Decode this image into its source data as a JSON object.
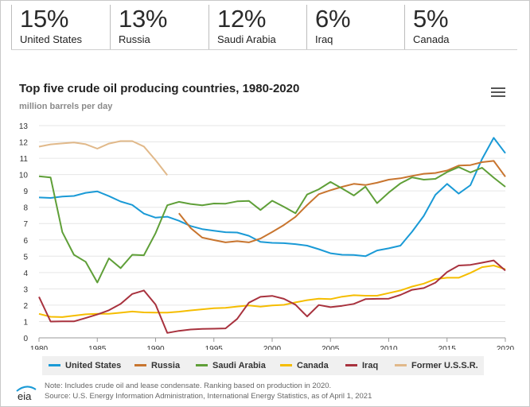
{
  "stats": [
    {
      "value": "15%",
      "country": "United States"
    },
    {
      "value": "13%",
      "country": "Russia"
    },
    {
      "value": "12%",
      "country": "Saudi Arabia"
    },
    {
      "value": "6%",
      "country": "Iraq"
    },
    {
      "value": "5%",
      "country": "Canada"
    }
  ],
  "chart": {
    "title": "Top five crude oil producing countries, 1980-2020",
    "subtitle": "million barrels per day",
    "menu_icon": "hamburger-menu-icon"
  },
  "footer": {
    "logo_text": "eia",
    "note": "Note: Includes crude oil and lease condensate. Ranking based on production in 2020.",
    "source": "Source: U.S. Energy Information Administration, International Energy Statistics, as of April 1, 2021"
  },
  "chart_data": {
    "type": "line",
    "title": "Top five crude oil producing countries, 1980-2020",
    "ylabel": "million barrels per day",
    "xlabel": "",
    "xlim": [
      1980,
      2020
    ],
    "ylim": [
      0,
      13
    ],
    "xticks": [
      1980,
      1985,
      1990,
      1995,
      2000,
      2005,
      2010,
      2015,
      2020
    ],
    "yticks": [
      0,
      1,
      2,
      3,
      4,
      5,
      6,
      7,
      8,
      9,
      10,
      11,
      12,
      13
    ],
    "grid": true,
    "legend_position": "bottom",
    "series": [
      {
        "name": "United States",
        "color": "#1a9ad6",
        "start": 1980,
        "values": [
          8.6,
          8.57,
          8.65,
          8.69,
          8.88,
          8.97,
          8.68,
          8.35,
          8.14,
          7.61,
          7.36,
          7.42,
          7.17,
          6.85,
          6.66,
          6.56,
          6.47,
          6.45,
          6.25,
          5.88,
          5.82,
          5.8,
          5.74,
          5.65,
          5.43,
          5.18,
          5.09,
          5.08,
          5.0,
          5.35,
          5.48,
          5.65,
          6.5,
          7.47,
          8.76,
          9.43,
          8.83,
          9.35,
          10.95,
          12.25,
          11.31
        ]
      },
      {
        "name": "Russia",
        "color": "#c8752f",
        "start": 1992,
        "values": [
          7.63,
          6.73,
          6.14,
          5.99,
          5.85,
          5.92,
          5.85,
          6.08,
          6.48,
          6.91,
          7.41,
          8.13,
          8.8,
          9.04,
          9.25,
          9.43,
          9.36,
          9.5,
          9.69,
          9.77,
          9.92,
          10.05,
          10.1,
          10.25,
          10.55,
          10.58,
          10.76,
          10.84,
          9.87
        ]
      },
      {
        "name": "Saudi Arabia",
        "color": "#5f9f38",
        "start": 1980,
        "values": [
          9.9,
          9.82,
          6.48,
          5.09,
          4.66,
          3.39,
          4.87,
          4.27,
          5.09,
          5.06,
          6.41,
          8.12,
          8.33,
          8.2,
          8.12,
          8.23,
          8.22,
          8.36,
          8.39,
          7.83,
          8.4,
          8.03,
          7.63,
          8.78,
          9.1,
          9.55,
          9.15,
          8.72,
          9.26,
          8.25,
          8.9,
          9.46,
          9.83,
          9.69,
          9.74,
          10.15,
          10.46,
          10.13,
          10.42,
          9.81,
          9.25
        ]
      },
      {
        "name": "Canada",
        "color": "#f5bd00",
        "start": 1980,
        "values": [
          1.47,
          1.29,
          1.27,
          1.36,
          1.44,
          1.47,
          1.47,
          1.54,
          1.61,
          1.56,
          1.55,
          1.55,
          1.6,
          1.68,
          1.75,
          1.81,
          1.84,
          1.92,
          1.98,
          1.91,
          1.98,
          2.02,
          2.17,
          2.31,
          2.4,
          2.37,
          2.52,
          2.61,
          2.58,
          2.58,
          2.74,
          2.9,
          3.14,
          3.32,
          3.6,
          3.68,
          3.68,
          3.98,
          4.33,
          4.43,
          4.2
        ]
      },
      {
        "name": "Iraq",
        "color": "#a8323e",
        "start": 1980,
        "values": [
          2.51,
          1.0,
          1.01,
          1.01,
          1.21,
          1.43,
          1.69,
          2.08,
          2.69,
          2.9,
          2.04,
          0.3,
          0.43,
          0.51,
          0.55,
          0.56,
          0.58,
          1.16,
          2.15,
          2.51,
          2.57,
          2.39,
          2.03,
          1.31,
          2.01,
          1.88,
          1.96,
          2.08,
          2.37,
          2.39,
          2.4,
          2.63,
          2.94,
          3.05,
          3.38,
          4.03,
          4.43,
          4.47,
          4.6,
          4.74,
          4.12
        ]
      },
      {
        "name": "Former U.S.S.R.",
        "color": "#e1b98a",
        "start": 1980,
        "values": [
          11.71,
          11.85,
          11.91,
          11.97,
          11.86,
          11.59,
          11.9,
          12.05,
          12.05,
          11.72,
          10.88,
          9.96
        ]
      }
    ]
  }
}
